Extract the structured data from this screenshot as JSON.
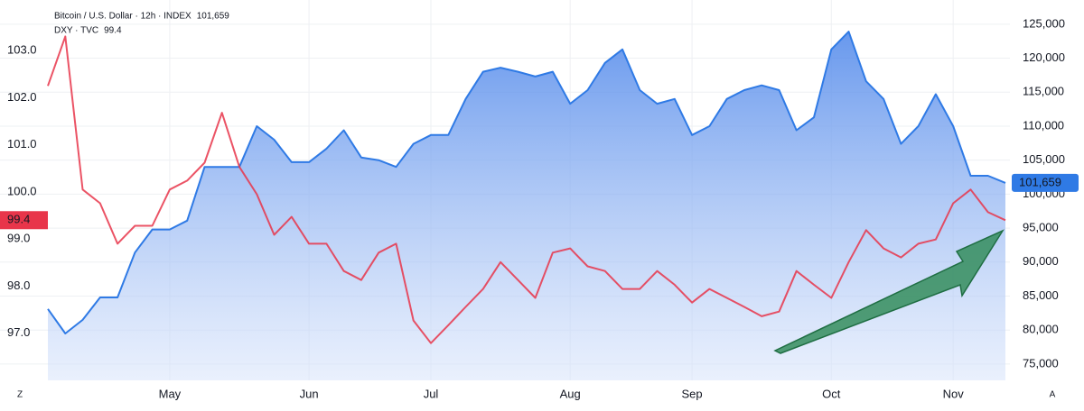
{
  "chart_data": {
    "type": "line",
    "categories": [
      null,
      null,
      null,
      null,
      null,
      null,
      null,
      "May",
      null,
      null,
      null,
      null,
      null,
      null,
      null,
      "Jun",
      null,
      null,
      null,
      null,
      null,
      null,
      "Jul",
      null,
      null,
      null,
      null,
      null,
      null,
      null,
      "Aug",
      null,
      null,
      null,
      null,
      null,
      null,
      "Sep",
      null,
      null,
      null,
      null,
      null,
      null,
      null,
      "Oct",
      null,
      null,
      null,
      null,
      null,
      null,
      "Nov",
      null,
      null,
      null
    ],
    "series": [
      {
        "name": "Bitcoin / U.S. Dollar · 12h · INDEX",
        "axis": "y2",
        "style": "area",
        "color": "#2f7ae5",
        "last_label": "101,659",
        "values": [
          83100,
          79500,
          81500,
          84800,
          84800,
          91400,
          94800,
          94800,
          96100,
          104000,
          104000,
          104000,
          110000,
          108000,
          104700,
          104700,
          106700,
          109400,
          105400,
          105000,
          104000,
          107400,
          108700,
          108700,
          114000,
          118000,
          118600,
          118000,
          117300,
          118000,
          113300,
          115300,
          119300,
          121300,
          115300,
          113300,
          114000,
          108700,
          110000,
          114000,
          115300,
          116000,
          115300,
          109400,
          111300,
          121300,
          123900,
          116600,
          114000,
          107400,
          110000,
          114700,
          110000,
          102700,
          102700,
          101659
        ]
      },
      {
        "name": "DXY · TVC",
        "axis": "y",
        "style": "line",
        "color": "#e8354a",
        "values": [
          102.25,
          103.3,
          100.05,
          99.76,
          98.9,
          99.28,
          99.28,
          100.05,
          100.24,
          100.62,
          101.68,
          100.53,
          99.95,
          99.09,
          99.47,
          98.9,
          98.9,
          98.32,
          98.13,
          98.71,
          98.9,
          97.27,
          96.79,
          97.17,
          97.56,
          97.94,
          98.51,
          98.13,
          97.75,
          98.71,
          98.8,
          98.42,
          98.32,
          97.94,
          97.94,
          98.32,
          98.03,
          97.65,
          97.94,
          97.75,
          97.56,
          97.36,
          97.46,
          98.32,
          98.03,
          97.75,
          98.51,
          99.19,
          98.8,
          98.61,
          98.9,
          98.99,
          99.76,
          100.05,
          99.57,
          99.4
        ]
      }
    ],
    "ylim": [
      96.0,
      103.92
    ],
    "yticks": [
      {
        "value": 97,
        "label": "97.0"
      },
      {
        "value": 98,
        "label": "98.0"
      },
      {
        "value": 99,
        "label": "99.0"
      },
      {
        "value": 100,
        "label": "100.0"
      },
      {
        "value": 101,
        "label": "101.0"
      },
      {
        "value": 102,
        "label": "102.0"
      },
      {
        "value": 103,
        "label": "103.0"
      }
    ],
    "y2lim": [
      72600,
      127500
    ],
    "y2ticks": [
      {
        "value": 75000,
        "label": "75,000"
      },
      {
        "value": 80000,
        "label": "80,000"
      },
      {
        "value": 85000,
        "label": "85,000"
      },
      {
        "value": 90000,
        "label": "90,000"
      },
      {
        "value": 95000,
        "label": "95,000"
      },
      {
        "value": 100000,
        "label": "100,000"
      },
      {
        "value": 105000,
        "label": "105,000"
      },
      {
        "value": 110000,
        "label": "110,000"
      },
      {
        "value": 115000,
        "label": "115,000"
      },
      {
        "value": 120000,
        "label": "120,000"
      },
      {
        "value": 125000,
        "label": "125,000"
      }
    ],
    "grid": true,
    "buttons": [
      "Z",
      "A"
    ]
  }
}
